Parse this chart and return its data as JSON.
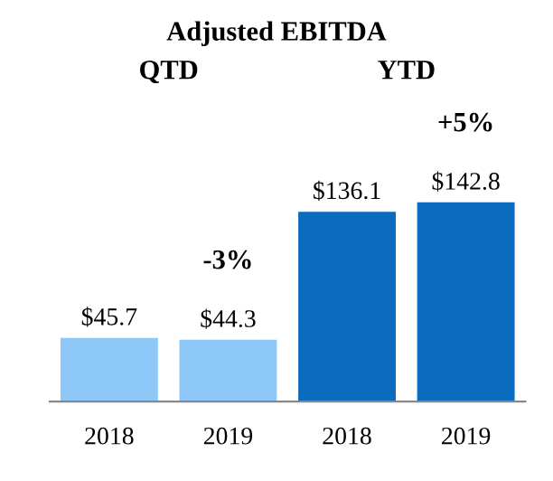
{
  "chart_data": {
    "type": "bar",
    "title": "Adjusted EBITDA",
    "categories": [
      "2018",
      "2019",
      "2018",
      "2019"
    ],
    "values": [
      45.7,
      44.3,
      136.1,
      142.8
    ],
    "colors": [
      "#8dc8f8",
      "#8dc8f8",
      "#0b6bbf",
      "#0b6bbf"
    ],
    "value_labels": [
      "$45.7",
      "$44.3",
      "$136.1",
      "$142.8"
    ],
    "annotations": [
      "QTD",
      "YTD",
      "-3%",
      "+5%"
    ],
    "grid": false,
    "legend": false
  }
}
